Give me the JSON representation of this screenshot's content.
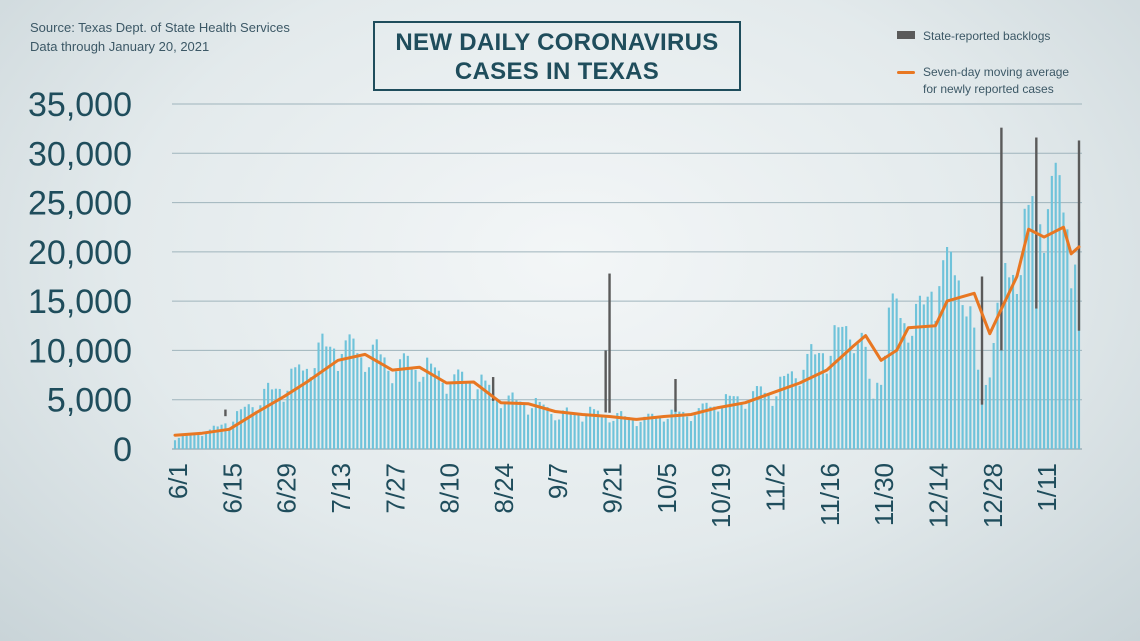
{
  "header": {
    "source_line1": "Source: Texas Dept. of State Health Services",
    "source_line2": "Data through  January 20, 2021",
    "title_line1": "NEW DAILY CORONAVIRUS",
    "title_line2": "CASES IN TEXAS"
  },
  "legend": {
    "backlog_label": "State-reported backlogs",
    "avg_label_line1": "Seven-day moving average",
    "avg_label_line2": "for newly reported cases"
  },
  "colors": {
    "bars": "#6fc3da",
    "backlog": "#5a5a5a",
    "average": "#e87722",
    "grid": "#9fb4bc",
    "axis_text": "#1f4d5c"
  },
  "chart_data": {
    "type": "bar",
    "title": "NEW DAILY CORONAVIRUS CASES IN TEXAS",
    "ylim": [
      0,
      35000
    ],
    "yticks": [
      "0",
      "5,000",
      "10,000",
      "15,000",
      "20,000",
      "25,000",
      "30,000",
      "35,000"
    ],
    "ytick_values": [
      0,
      5000,
      10000,
      15000,
      20000,
      25000,
      30000,
      35000
    ],
    "xtick_labels": [
      "6/1",
      "6/15",
      "6/29",
      "7/13",
      "7/27",
      "8/10",
      "8/24",
      "9/7",
      "9/21",
      "10/5",
      "10/19",
      "11/2",
      "11/16",
      "11/30",
      "12/14",
      "12/28",
      "1/11"
    ],
    "x_start": "2020-06-01",
    "x_end": "2021-01-20",
    "grid": true,
    "legend_position": "top-right",
    "series": [
      {
        "name": "Seven-day moving average for newly reported cases",
        "kind": "line",
        "points": [
          [
            "2020-06-01",
            1400
          ],
          [
            "2020-06-08",
            1600
          ],
          [
            "2020-06-15",
            2000
          ],
          [
            "2020-06-22",
            3700
          ],
          [
            "2020-06-29",
            5300
          ],
          [
            "2020-07-05",
            6800
          ],
          [
            "2020-07-13",
            9000
          ],
          [
            "2020-07-20",
            9600
          ],
          [
            "2020-07-27",
            8000
          ],
          [
            "2020-08-03",
            8300
          ],
          [
            "2020-08-10",
            6700
          ],
          [
            "2020-08-17",
            6800
          ],
          [
            "2020-08-24",
            4700
          ],
          [
            "2020-08-31",
            4600
          ],
          [
            "2020-09-07",
            3800
          ],
          [
            "2020-09-14",
            3500
          ],
          [
            "2020-09-21",
            3300
          ],
          [
            "2020-09-28",
            3000
          ],
          [
            "2020-10-05",
            3300
          ],
          [
            "2020-10-12",
            3500
          ],
          [
            "2020-10-19",
            4200
          ],
          [
            "2020-10-26",
            4700
          ],
          [
            "2020-11-02",
            5700
          ],
          [
            "2020-11-09",
            6700
          ],
          [
            "2020-11-16",
            8000
          ],
          [
            "2020-11-23",
            10500
          ],
          [
            "2020-11-26",
            11500
          ],
          [
            "2020-11-30",
            9000
          ],
          [
            "2020-12-04",
            10000
          ],
          [
            "2020-12-07",
            12300
          ],
          [
            "2020-12-14",
            12500
          ],
          [
            "2020-12-17",
            15000
          ],
          [
            "2020-12-24",
            15800
          ],
          [
            "2020-12-28",
            11700
          ],
          [
            "2020-12-31",
            14200
          ],
          [
            "2021-01-04",
            17500
          ],
          [
            "2021-01-07",
            22300
          ],
          [
            "2021-01-11",
            21500
          ],
          [
            "2021-01-16",
            22500
          ],
          [
            "2021-01-18",
            19800
          ],
          [
            "2021-01-20",
            20500
          ]
        ]
      },
      {
        "name": "State-reported backlogs",
        "kind": "bar-segment",
        "spikes": [
          [
            "2020-06-14",
            4000
          ],
          [
            "2020-08-22",
            7300
          ],
          [
            "2020-09-20",
            10000
          ],
          [
            "2020-09-21",
            17800
          ],
          [
            "2020-10-08",
            7100
          ],
          [
            "2020-12-26",
            17500
          ],
          [
            "2020-12-31",
            32600
          ],
          [
            "2021-01-09",
            31600
          ],
          [
            "2021-01-20",
            31300
          ]
        ]
      }
    ],
    "bars": {
      "name": "New daily cases",
      "anchors": [
        [
          "2020-06-01",
          1200
        ],
        [
          "2020-06-10",
          1800
        ],
        [
          "2020-06-17",
          3300
        ],
        [
          "2020-06-24",
          5500
        ],
        [
          "2020-06-30",
          6500
        ],
        [
          "2020-07-07",
          9500
        ],
        [
          "2020-07-14",
          10500
        ],
        [
          "2020-07-21",
          9500
        ],
        [
          "2020-07-28",
          8500
        ],
        [
          "2020-08-04",
          8300
        ],
        [
          "2020-08-11",
          7000
        ],
        [
          "2020-08-18",
          6800
        ],
        [
          "2020-08-25",
          5000
        ],
        [
          "2020-09-01",
          4600
        ],
        [
          "2020-09-08",
          3500
        ],
        [
          "2020-09-15",
          3700
        ],
        [
          "2020-09-22",
          3300
        ],
        [
          "2020-09-29",
          3000
        ],
        [
          "2020-10-06",
          3500
        ],
        [
          "2020-10-13",
          3700
        ],
        [
          "2020-10-20",
          4800
        ],
        [
          "2020-10-27",
          5300
        ],
        [
          "2020-11-03",
          6000
        ],
        [
          "2020-11-10",
          8500
        ],
        [
          "2020-11-17",
          10500
        ],
        [
          "2020-11-24",
          12500
        ],
        [
          "2020-11-28",
          5000
        ],
        [
          "2020-12-03",
          14000
        ],
        [
          "2020-12-10",
          13000
        ],
        [
          "2020-12-15",
          18000
        ],
        [
          "2020-12-21",
          18000
        ],
        [
          "2020-12-26",
          5000
        ],
        [
          "2020-12-31",
          16000
        ],
        [
          "2021-01-05",
          20000
        ],
        [
          "2021-01-08",
          24000
        ],
        [
          "2021-01-12",
          26000
        ],
        [
          "2021-01-16",
          24000
        ],
        [
          "2021-01-20",
          20000
        ]
      ]
    }
  }
}
